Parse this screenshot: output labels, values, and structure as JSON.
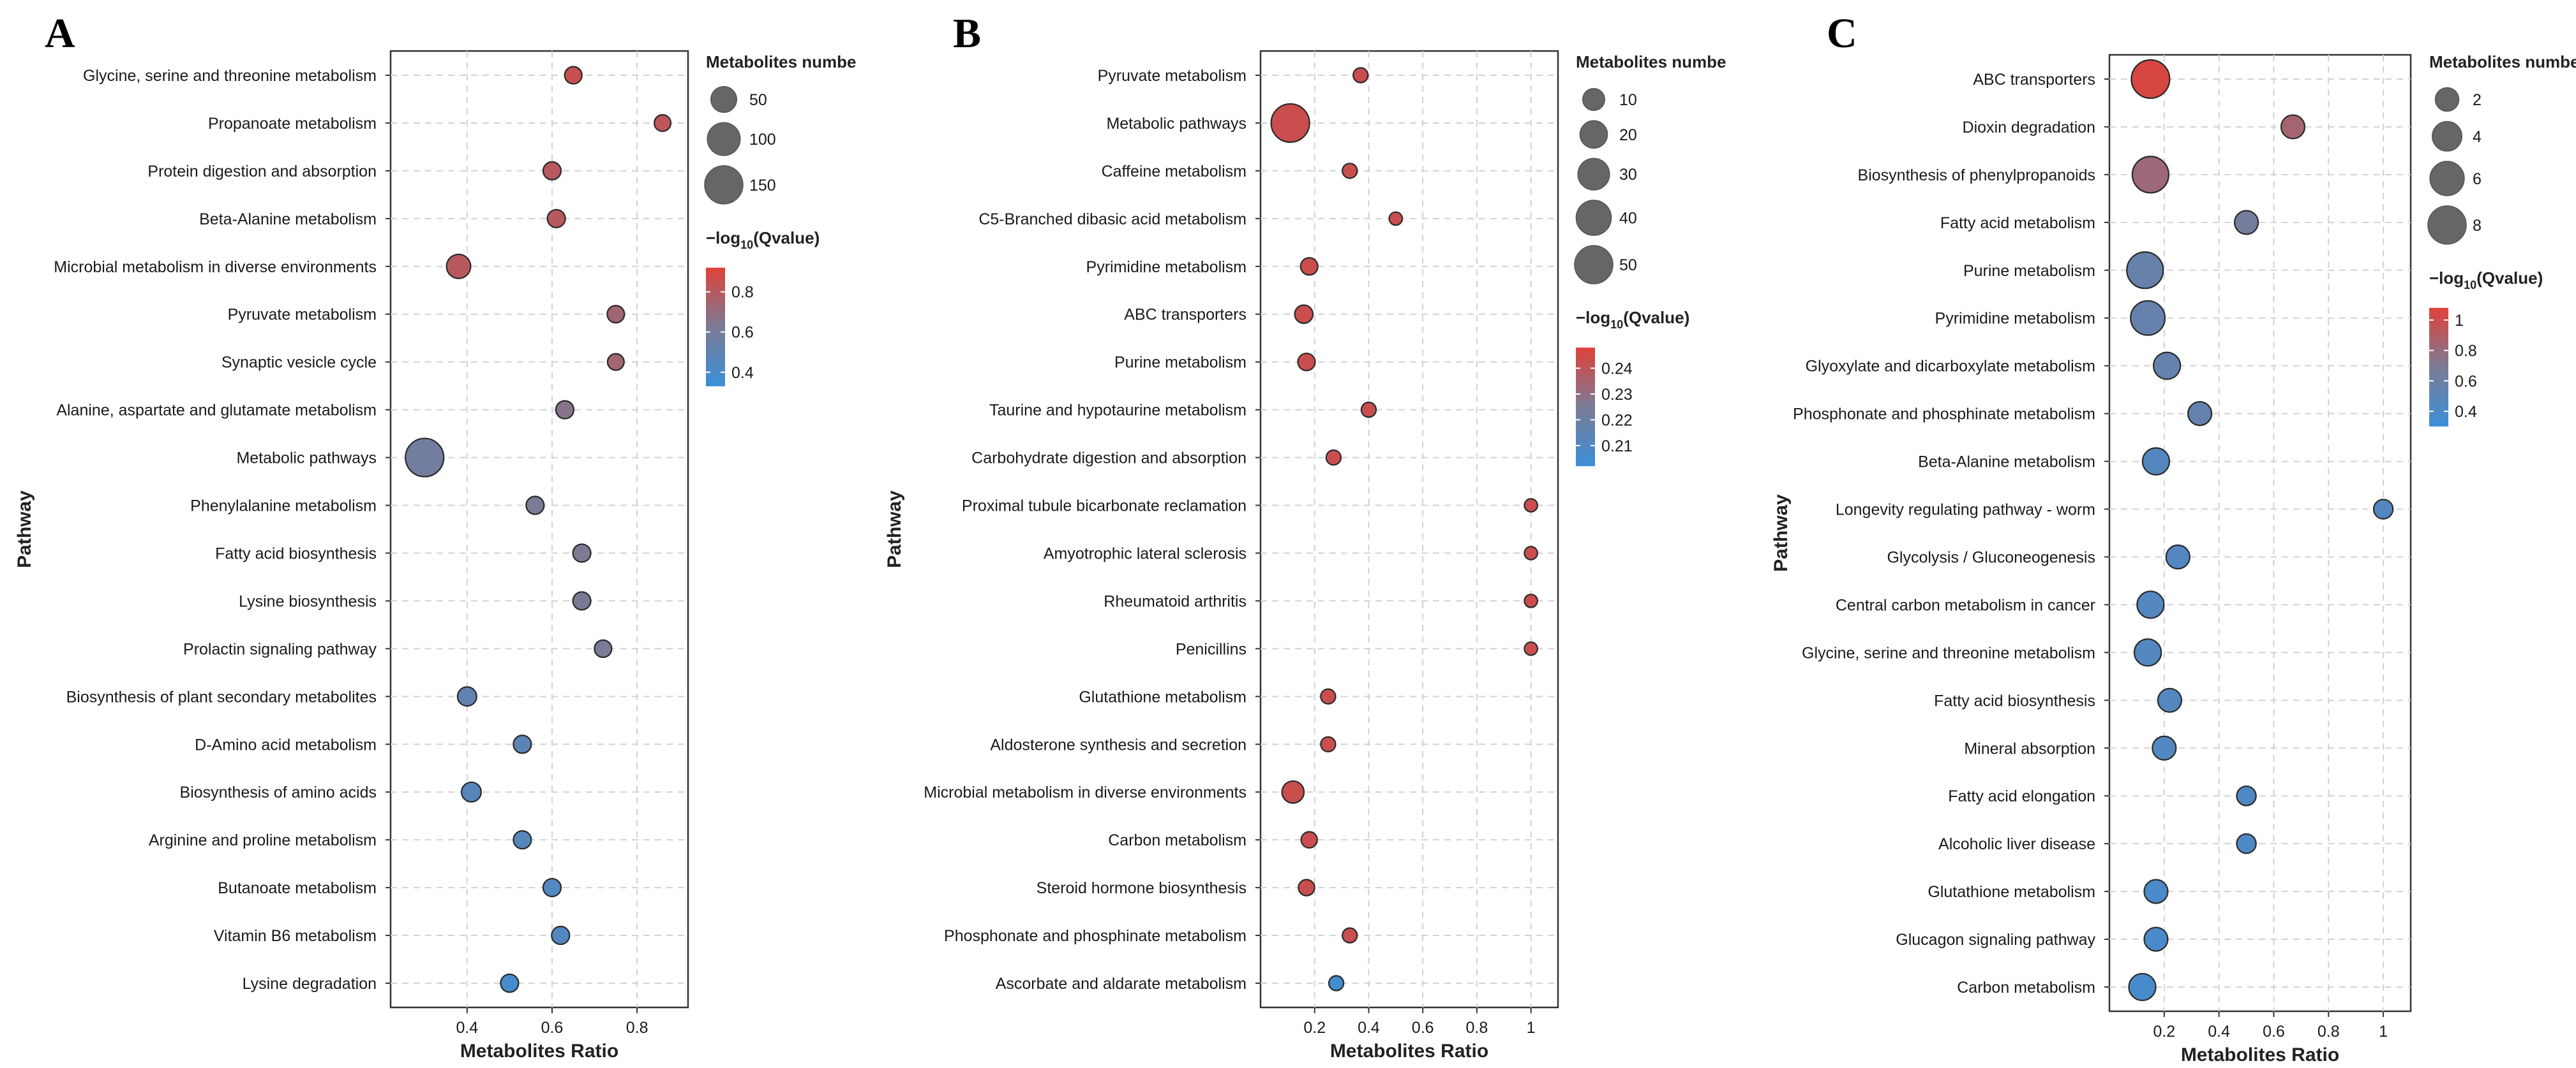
{
  "figure": {
    "y_axis_label": "Pathway",
    "x_axis_label": "Metabolites Ratio",
    "size_legend_title": "Metabolites numbe",
    "color_legend_title_pre": "−log",
    "color_legend_title_sub": "10",
    "color_legend_title_post": "(Qvalue)",
    "colors": {
      "low": "#3b8fd9",
      "mid": "#7b7b95",
      "high": "#e0423a"
    }
  },
  "chart_data": [
    {
      "panel": "A",
      "type": "scatter",
      "xlabel": "Metabolites Ratio",
      "ylabel": "Pathway",
      "xlim": [
        0.22,
        0.92
      ],
      "xticks": [
        0.4,
        0.6,
        0.8
      ],
      "xtick_labels": [
        "0.4",
        "0.6",
        "0.8"
      ],
      "grid": true,
      "size_legend": {
        "title": "Metabolites numbe",
        "values": [
          50,
          100,
          150
        ],
        "labels": [
          "50",
          "100",
          "150"
        ],
        "max": 150
      },
      "color_legend": {
        "range": [
          0.33,
          0.92
        ],
        "ticks": [
          0.4,
          0.6,
          0.8
        ],
        "tick_labels": [
          "0.4",
          "0.6",
          "0.8"
        ]
      },
      "points": [
        {
          "pathway": "Glycine, serine and threonine metabolism",
          "ratio": 0.65,
          "count": 12,
          "q": 0.85
        },
        {
          "pathway": "Propanoate metabolism",
          "ratio": 0.86,
          "count": 10,
          "q": 0.82
        },
        {
          "pathway": "Protein digestion and absorption",
          "ratio": 0.6,
          "count": 14,
          "q": 0.8
        },
        {
          "pathway": "Beta-Alanine metabolism",
          "ratio": 0.61,
          "count": 14,
          "q": 0.8
        },
        {
          "pathway": "Microbial metabolism in diverse environments",
          "ratio": 0.38,
          "count": 40,
          "q": 0.8
        },
        {
          "pathway": "Pyruvate metabolism",
          "ratio": 0.75,
          "count": 12,
          "q": 0.74
        },
        {
          "pathway": "Synaptic vesicle cycle",
          "ratio": 0.75,
          "count": 10,
          "q": 0.74
        },
        {
          "pathway": "Alanine, aspartate and glutamate metabolism",
          "ratio": 0.63,
          "count": 14,
          "q": 0.66
        },
        {
          "pathway": "Metabolic pathways",
          "ratio": 0.3,
          "count": 150,
          "q": 0.58
        },
        {
          "pathway": "Phenylalanine metabolism",
          "ratio": 0.56,
          "count": 14,
          "q": 0.62
        },
        {
          "pathway": "Fatty acid biosynthesis",
          "ratio": 0.67,
          "count": 14,
          "q": 0.63
        },
        {
          "pathway": "Lysine biosynthesis",
          "ratio": 0.67,
          "count": 14,
          "q": 0.62
        },
        {
          "pathway": "Prolactin signaling pathway",
          "ratio": 0.72,
          "count": 12,
          "q": 0.61
        },
        {
          "pathway": "Biosynthesis of plant secondary metabolites",
          "ratio": 0.4,
          "count": 18,
          "q": 0.5
        },
        {
          "pathway": "D-Amino acid metabolism",
          "ratio": 0.53,
          "count": 14,
          "q": 0.48
        },
        {
          "pathway": "Biosynthesis of amino acids",
          "ratio": 0.41,
          "count": 20,
          "q": 0.46
        },
        {
          "pathway": "Arginine and proline metabolism",
          "ratio": 0.53,
          "count": 14,
          "q": 0.45
        },
        {
          "pathway": "Butanoate metabolism",
          "ratio": 0.6,
          "count": 14,
          "q": 0.44
        },
        {
          "pathway": "Vitamin B6 metabolism",
          "ratio": 0.62,
          "count": 14,
          "q": 0.43
        },
        {
          "pathway": "Lysine degradation",
          "ratio": 0.5,
          "count": 14,
          "q": 0.38
        }
      ]
    },
    {
      "panel": "B",
      "type": "scatter",
      "xlabel": "Metabolites Ratio",
      "ylabel": "Pathway",
      "xlim": [
        0.0,
        1.1
      ],
      "xticks": [
        0.2,
        0.4,
        0.6,
        0.8,
        1.0
      ],
      "xtick_labels": [
        "0.2",
        "0.4",
        "0.6",
        "0.8",
        "1"
      ],
      "grid": true,
      "size_legend": {
        "title": "Metabolites numbe",
        "values": [
          10,
          20,
          30,
          40,
          50
        ],
        "labels": [
          "10",
          "20",
          "30",
          "40",
          "50"
        ],
        "max": 50
      },
      "color_legend": {
        "range": [
          0.202,
          0.248
        ],
        "ticks": [
          0.21,
          0.22,
          0.23,
          0.24
        ],
        "tick_labels": [
          "0.21",
          "0.22",
          "0.23",
          "0.24"
        ]
      },
      "points": [
        {
          "pathway": "Pyruvate metabolism",
          "ratio": 0.37,
          "count": 2,
          "q": 0.243
        },
        {
          "pathway": "Metabolic pathways",
          "ratio": 0.11,
          "count": 50,
          "q": 0.243
        },
        {
          "pathway": "Caffeine metabolism",
          "ratio": 0.33,
          "count": 2,
          "q": 0.243
        },
        {
          "pathway": "C5-Branched dibasic acid metabolism",
          "ratio": 0.5,
          "count": 1,
          "q": 0.243
        },
        {
          "pathway": "Pyrimidine metabolism",
          "ratio": 0.18,
          "count": 4,
          "q": 0.243
        },
        {
          "pathway": "ABC transporters",
          "ratio": 0.16,
          "count": 5,
          "q": 0.243
        },
        {
          "pathway": "Purine metabolism",
          "ratio": 0.17,
          "count": 4,
          "q": 0.243
        },
        {
          "pathway": "Taurine and hypotaurine metabolism",
          "ratio": 0.4,
          "count": 2,
          "q": 0.243
        },
        {
          "pathway": "Carbohydrate digestion and absorption",
          "ratio": 0.27,
          "count": 2,
          "q": 0.243
        },
        {
          "pathway": "Proximal tubule bicarbonate reclamation",
          "ratio": 1.0,
          "count": 1,
          "q": 0.243
        },
        {
          "pathway": "Amyotrophic lateral sclerosis",
          "ratio": 1.0,
          "count": 1,
          "q": 0.243
        },
        {
          "pathway": "Rheumatoid arthritis",
          "ratio": 1.0,
          "count": 1,
          "q": 0.243
        },
        {
          "pathway": "Penicillins",
          "ratio": 1.0,
          "count": 1,
          "q": 0.243
        },
        {
          "pathway": "Glutathione metabolism",
          "ratio": 0.25,
          "count": 2,
          "q": 0.243
        },
        {
          "pathway": "Aldosterone synthesis and secretion",
          "ratio": 0.25,
          "count": 2,
          "q": 0.243
        },
        {
          "pathway": "Microbial metabolism in diverse environments",
          "ratio": 0.12,
          "count": 10,
          "q": 0.243
        },
        {
          "pathway": "Carbon metabolism",
          "ratio": 0.18,
          "count": 3,
          "q": 0.243
        },
        {
          "pathway": "Steroid hormone biosynthesis",
          "ratio": 0.17,
          "count": 3,
          "q": 0.243
        },
        {
          "pathway": "Phosphonate and phosphinate metabolism",
          "ratio": 0.33,
          "count": 2,
          "q": 0.243
        },
        {
          "pathway": "Ascorbate and aldarate metabolism",
          "ratio": 0.28,
          "count": 2,
          "q": 0.205
        }
      ]
    },
    {
      "panel": "C",
      "type": "scatter",
      "xlabel": "Metabolites Ratio",
      "ylabel": "Pathway",
      "xlim": [
        0.0,
        1.1
      ],
      "xticks": [
        0.2,
        0.4,
        0.6,
        0.8,
        1.0
      ],
      "xtick_labels": [
        "0.2",
        "0.4",
        "0.6",
        "0.8",
        "1"
      ],
      "grid": true,
      "size_legend": {
        "title": "Metabolites numbe",
        "values": [
          2,
          4,
          6,
          8
        ],
        "labels": [
          "2",
          "4",
          "6",
          "8"
        ],
        "max": 8
      },
      "color_legend": {
        "range": [
          0.3,
          1.08
        ],
        "ticks": [
          0.4,
          0.6,
          0.8,
          1.0
        ],
        "tick_labels": [
          "0.4",
          "0.6",
          "0.8",
          "1"
        ]
      },
      "points": [
        {
          "pathway": "ABC transporters",
          "ratio": 0.15,
          "count": 9,
          "q": 1.05
        },
        {
          "pathway": "Dioxin degradation",
          "ratio": 0.67,
          "count": 2,
          "q": 0.85
        },
        {
          "pathway": "Biosynthesis of phenylpropanoids",
          "ratio": 0.15,
          "count": 7,
          "q": 0.82
        },
        {
          "pathway": "Fatty acid metabolism",
          "ratio": 0.5,
          "count": 2,
          "q": 0.65
        },
        {
          "pathway": "Purine metabolism",
          "ratio": 0.13,
          "count": 7,
          "q": 0.57
        },
        {
          "pathway": "Pyrimidine metabolism",
          "ratio": 0.14,
          "count": 6,
          "q": 0.56
        },
        {
          "pathway": "Glyoxylate and dicarboxylate metabolism",
          "ratio": 0.21,
          "count": 3,
          "q": 0.55
        },
        {
          "pathway": "Phosphonate and phosphinate metabolism",
          "ratio": 0.33,
          "count": 2,
          "q": 0.55
        },
        {
          "pathway": "Beta-Alanine metabolism",
          "ratio": 0.17,
          "count": 3,
          "q": 0.45
        },
        {
          "pathway": "Longevity regulating pathway - worm",
          "ratio": 1.0,
          "count": 1,
          "q": 0.45
        },
        {
          "pathway": "Glycolysis / Gluconeogenesis",
          "ratio": 0.25,
          "count": 2,
          "q": 0.45
        },
        {
          "pathway": "Central carbon metabolism in cancer",
          "ratio": 0.15,
          "count": 3,
          "q": 0.45
        },
        {
          "pathway": "Glycine, serine and threonine metabolism",
          "ratio": 0.14,
          "count": 3,
          "q": 0.45
        },
        {
          "pathway": "Fatty acid biosynthesis",
          "ratio": 0.22,
          "count": 2,
          "q": 0.45
        },
        {
          "pathway": "Mineral absorption",
          "ratio": 0.2,
          "count": 2,
          "q": 0.44
        },
        {
          "pathway": "Fatty acid elongation",
          "ratio": 0.5,
          "count": 1,
          "q": 0.42
        },
        {
          "pathway": "Alcoholic liver disease",
          "ratio": 0.5,
          "count": 1,
          "q": 0.41
        },
        {
          "pathway": "Glutathione metabolism",
          "ratio": 0.17,
          "count": 2,
          "q": 0.4
        },
        {
          "pathway": "Glucagon signaling pathway",
          "ratio": 0.17,
          "count": 2,
          "q": 0.4
        },
        {
          "pathway": "Carbon metabolism",
          "ratio": 0.12,
          "count": 3,
          "q": 0.38
        }
      ]
    }
  ]
}
